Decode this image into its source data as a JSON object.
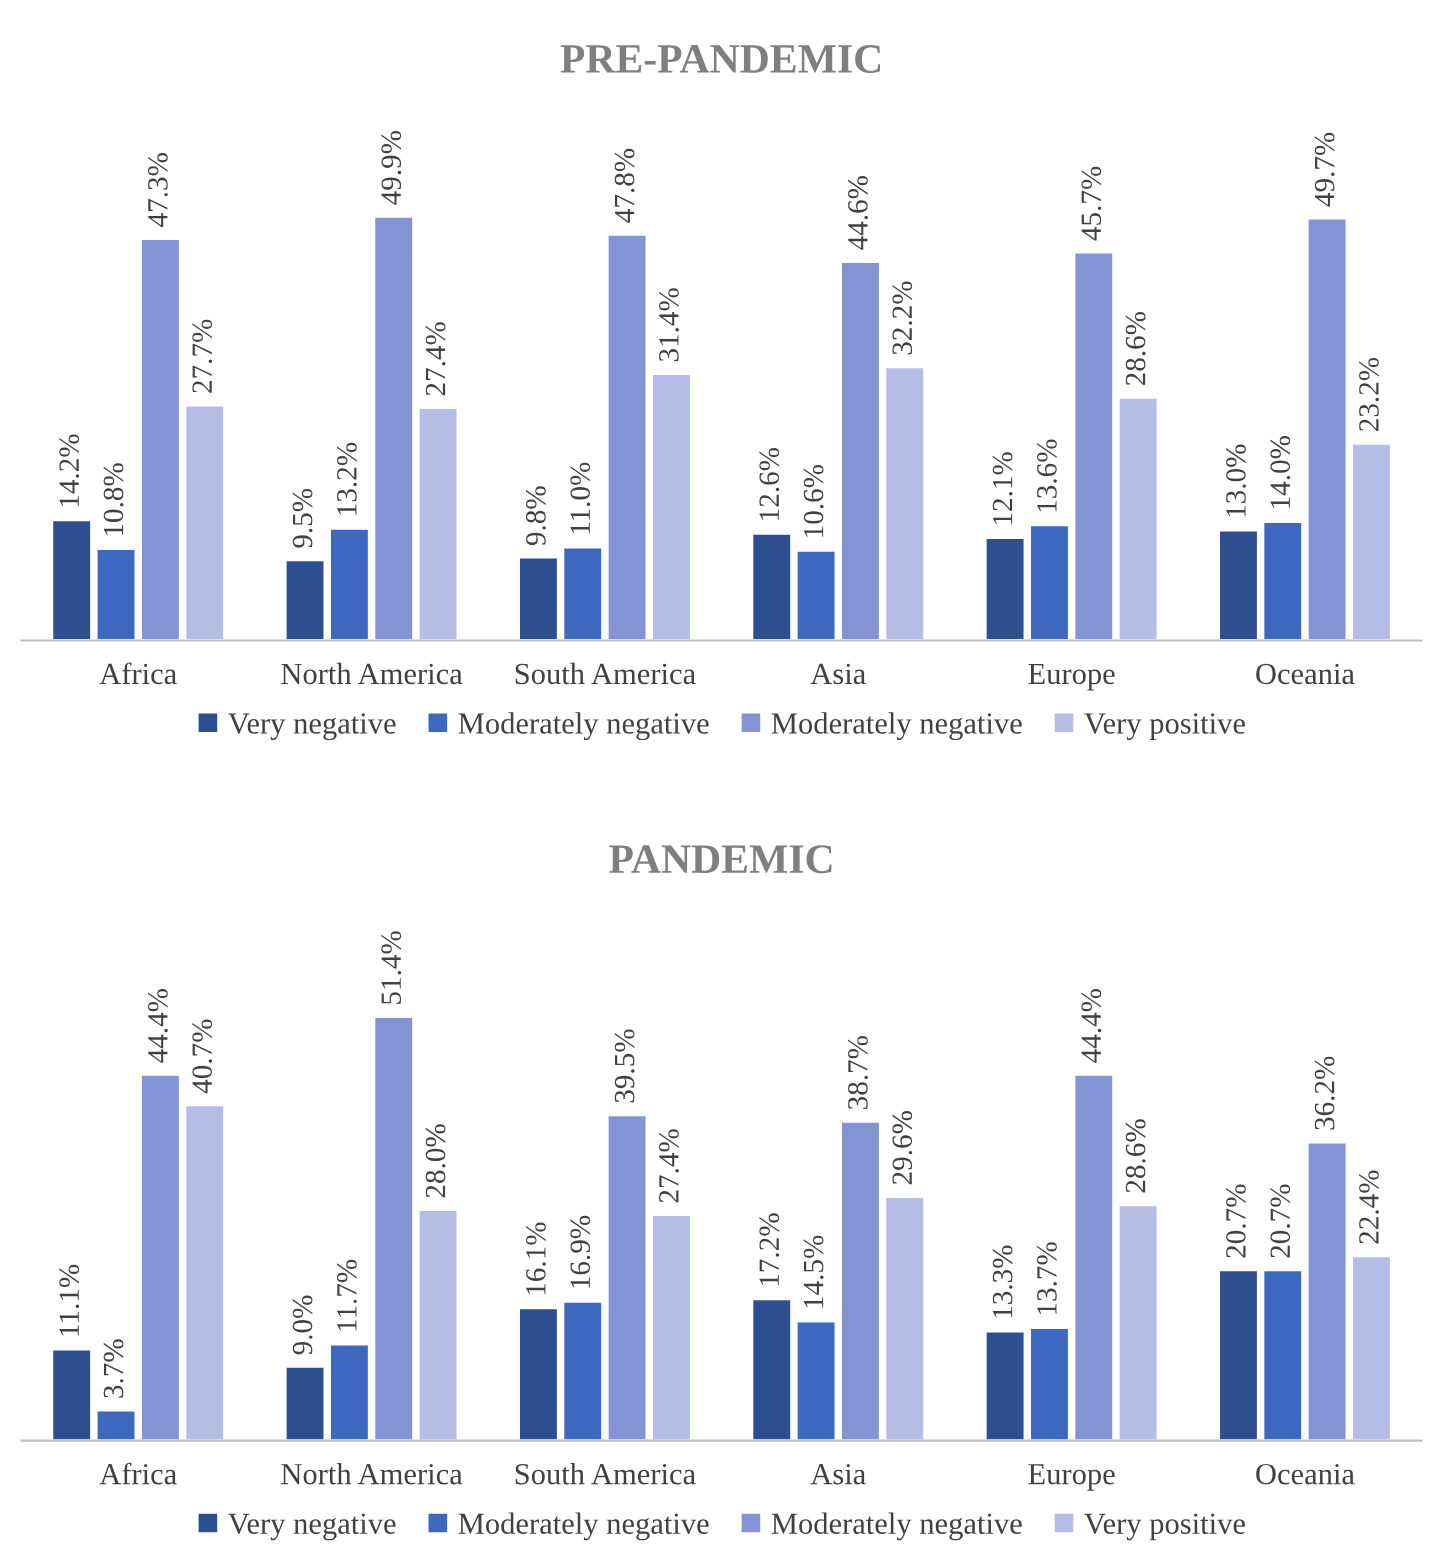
{
  "chart_data": [
    {
      "type": "bar",
      "title": "PRE-PANDEMIC",
      "categories": [
        "Africa",
        "North America",
        "South America",
        "Asia",
        "Europe",
        "Oceania"
      ],
      "legend": "bottom",
      "tick_labels": "x",
      "grid": false,
      "series": [
        {
          "name": "Very negative",
          "color": "#2e4f8f",
          "values": [
            14.2,
            9.5,
            9.8,
            12.6,
            12.1,
            13.0
          ],
          "value_labels": [
            "14.2%",
            "9.5%",
            "9.8%",
            "12.6%",
            "12.1%",
            "13.0%"
          ]
        },
        {
          "name": "Moderately negative",
          "color": "#3d68bf",
          "values": [
            10.8,
            13.2,
            11.0,
            10.6,
            13.6,
            14.0
          ],
          "value_labels": [
            "10.8%",
            "13.2%",
            "11.0%",
            "10.6%",
            "13.6%",
            "14.0%"
          ]
        },
        {
          "name": "Moderately negative",
          "color": "#8394d4",
          "values": [
            47.3,
            49.9,
            47.8,
            44.6,
            45.7,
            49.7
          ],
          "value_labels": [
            "47.3%",
            "49.9%",
            "47.8%",
            "44.6%",
            "45.7%",
            "49.7%"
          ]
        },
        {
          "name": "Very positive",
          "color": "#b3bde6",
          "values": [
            27.7,
            27.4,
            31.4,
            32.2,
            28.6,
            23.2
          ],
          "value_labels": [
            "27.7%",
            "27.4%",
            "31.4%",
            "32.2%",
            "28.6%",
            "23.2%"
          ]
        }
      ]
    },
    {
      "type": "bar",
      "title": "PANDEMIC",
      "categories": [
        "Africa",
        "North America",
        "South America",
        "Asia",
        "Europe",
        "Oceania"
      ],
      "legend": "bottom",
      "tick_labels": "x",
      "grid": false,
      "series": [
        {
          "name": "Very negative",
          "color": "#2e4f8f",
          "values": [
            11.1,
            9.0,
            16.1,
            17.2,
            13.3,
            20.7
          ],
          "value_labels": [
            "11.1%",
            "9.0%",
            "16.1%",
            "17.2%",
            "13.3%",
            "20.7%"
          ]
        },
        {
          "name": "Moderately negative",
          "color": "#3d68bf",
          "values": [
            3.7,
            11.7,
            16.9,
            14.5,
            13.7,
            20.7
          ],
          "value_labels": [
            "3.7%",
            "11.7%",
            "16.9%",
            "14.5%",
            "13.7%",
            "20.7%"
          ]
        },
        {
          "name": "Moderately negative",
          "color": "#8394d4",
          "values": [
            44.4,
            51.4,
            39.5,
            38.7,
            44.4,
            36.2
          ],
          "value_labels": [
            "44.4%",
            "51.4%",
            "39.5%",
            "38.7%",
            "44.4%",
            "36.2%"
          ]
        },
        {
          "name": "Very positive",
          "color": "#b3bde6",
          "values": [
            40.7,
            28.0,
            27.4,
            29.6,
            28.6,
            22.4
          ],
          "value_labels": [
            "40.7%",
            "28.0%",
            "27.4%",
            "29.6%",
            "28.6%",
            "22.4%"
          ]
        }
      ]
    }
  ]
}
